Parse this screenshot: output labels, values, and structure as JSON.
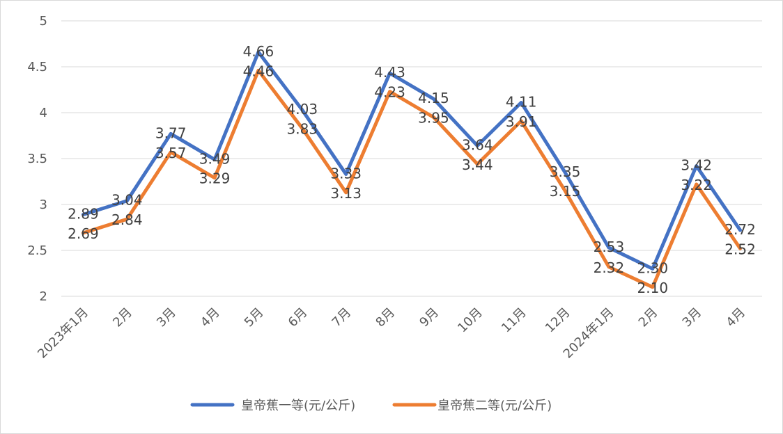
{
  "chart_data": {
    "type": "line",
    "title": "",
    "xlabel": "",
    "ylabel": "",
    "categories": [
      "2023年1月",
      "2月",
      "3月",
      "4月",
      "5月",
      "6月",
      "7月",
      "8月",
      "9月",
      "10月",
      "11月",
      "12月",
      "2024年1月",
      "2月",
      "3月",
      "4月"
    ],
    "ylim": [
      2,
      5
    ],
    "yticks": [
      "2",
      "2.5",
      "3",
      "3.5",
      "4",
      "4.5",
      "5"
    ],
    "grid": true,
    "legend_position": "bottom",
    "series": [
      {
        "name": "皇帝蕉一等(元/公斤)",
        "color": "#4472c4",
        "values": [
          2.89,
          3.04,
          3.77,
          3.49,
          4.66,
          4.03,
          3.33,
          4.43,
          4.15,
          3.64,
          4.11,
          3.35,
          2.53,
          2.3,
          3.42,
          2.72
        ],
        "labels": [
          "2.89",
          "3.04",
          "3.77",
          "3.49",
          "4.66",
          "4.03",
          "3.33",
          "4.43",
          "4.15",
          "3.64",
          "4.11",
          "3.35",
          "2.53",
          "2.30",
          "3.42",
          "2.72"
        ]
      },
      {
        "name": "皇帝蕉二等(元/公斤)",
        "color": "#ed7d31",
        "values": [
          2.69,
          2.84,
          3.57,
          3.29,
          4.46,
          3.83,
          3.13,
          4.23,
          3.95,
          3.44,
          3.91,
          3.15,
          2.32,
          2.1,
          3.22,
          2.52
        ],
        "labels": [
          "2.69",
          "2.84",
          "3.57",
          "3.29",
          "4.46",
          "3.83",
          "3.13",
          "4.23",
          "3.95",
          "3.44",
          "3.91",
          "3.15",
          "2.32",
          "2.10",
          "3.22",
          "2.52"
        ]
      }
    ]
  }
}
